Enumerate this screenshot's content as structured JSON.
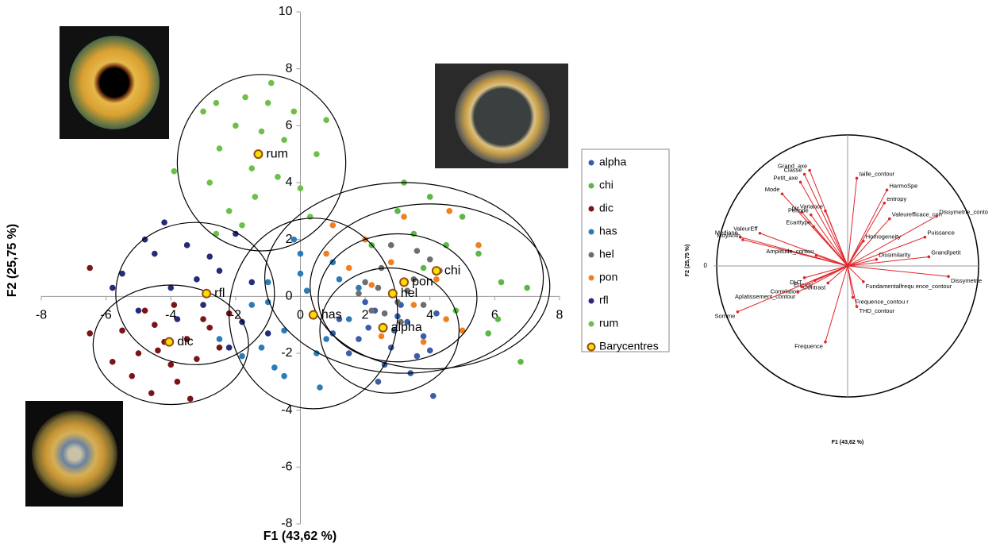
{
  "chart_data": [
    {
      "type": "scatter",
      "xlabel": "F1 (43,62 %)",
      "ylabel": "F2 (25,75 %)",
      "xlim": [
        -8,
        8
      ],
      "ylim": [
        -8,
        10
      ],
      "xticks": [
        -8,
        -6,
        -4,
        -2,
        0,
        2,
        4,
        6,
        8
      ],
      "yticks": [
        -8,
        -6,
        -4,
        -2,
        0,
        2,
        4,
        6,
        8,
        10
      ],
      "legend": "right",
      "series": [
        {
          "name": "alpha",
          "color": "#3b5ca8",
          "x": [
            1.2,
            1.8,
            2.3,
            2.8,
            3.3,
            3.8,
            4.2,
            1.5,
            2.1,
            2.6,
            3.1,
            3.6,
            2.0,
            2.9,
            3.4,
            1.0,
            4.0,
            2.4,
            3.0,
            4.1
          ],
          "y": [
            -0.8,
            -1.5,
            -0.5,
            -1.8,
            -0.9,
            -1.4,
            -0.6,
            -2.0,
            -1.1,
            -2.4,
            -0.3,
            -2.1,
            -0.2,
            -1.2,
            -2.7,
            -1.3,
            -1.9,
            -3.0,
            -0.7,
            -3.5
          ],
          "ellipse": {
            "cx": 2.75,
            "cy": -1.2,
            "rx": 2.15,
            "ry": 2.2
          }
        },
        {
          "name": "chi",
          "color": "#5cb846",
          "x": [
            3.5,
            4.5,
            5.5,
            6.2,
            3.0,
            5.0,
            4.8,
            6.8,
            2.2,
            5.8,
            4.0,
            7.0,
            3.8,
            6.1,
            3.2
          ],
          "y": [
            2.2,
            1.8,
            1.5,
            0.5,
            3.0,
            2.8,
            -0.5,
            -2.3,
            1.8,
            -1.3,
            3.5,
            0.3,
            1.0,
            -0.8,
            4.0
          ],
          "ellipse": {
            "cx": 4.0,
            "cy": 0.35,
            "rx": 3.7,
            "ry": 2.9
          }
        },
        {
          "name": "dic",
          "color": "#7b1416",
          "x": [
            -5.5,
            -5,
            -4.5,
            -4,
            -3.5,
            -3,
            -2.5,
            -5.2,
            -4.8,
            -4.2,
            -3.8,
            -3.2,
            -2.8,
            -4.6,
            -3.9,
            -5.8,
            -4.4,
            -3.4,
            -6.5,
            -2.2,
            -6.5
          ],
          "y": [
            -1.2,
            -2.0,
            -1.0,
            -2.4,
            -1.5,
            -0.8,
            -1.8,
            -2.8,
            -0.5,
            -1.6,
            -3.0,
            -2.2,
            -1.1,
            -3.4,
            -0.3,
            -2.3,
            -1.9,
            -3.6,
            -1.3,
            -0.6,
            1.0
          ],
          "ellipse": {
            "cx": -4.0,
            "cy": -1.7,
            "rx": 2.4,
            "ry": 2.1
          }
        },
        {
          "name": "has",
          "color": "#2b7bb6",
          "x": [
            -1.5,
            -1,
            -0.5,
            0,
            0.5,
            1,
            1.5,
            -0.8,
            0.2,
            0.8,
            -0.2,
            1.2,
            -1.2,
            0.6,
            -2.5,
            -0.5,
            1.8,
            0,
            -1.0,
            -1.8
          ],
          "y": [
            -0.3,
            0.5,
            -1.2,
            0.8,
            -2.0,
            1.2,
            -0.8,
            -2.5,
            0.2,
            -1.5,
            2.0,
            0.6,
            -1.8,
            -3.2,
            -1.5,
            -2.8,
            0.3,
            1.5,
            -0.2,
            -2.1
          ],
          "ellipse": {
            "cx": 0.4,
            "cy": -0.6,
            "rx": 2.6,
            "ry": 3.35
          }
        },
        {
          "name": "hel",
          "color": "#6e6e6e",
          "x": [
            2,
            2.5,
            3,
            3.5,
            4,
            2.2,
            2.8,
            3.3,
            3.8,
            4.3,
            1.8,
            3.1,
            2.6,
            3.6,
            2.4
          ],
          "y": [
            0.5,
            1.0,
            -0.2,
            0.6,
            1.3,
            -0.5,
            1.8,
            0.2,
            -0.3,
            0.9,
            0.1,
            -0.9,
            -0.6,
            1.6,
            0.3
          ],
          "ellipse": {
            "cx": 3.0,
            "cy": -0.05,
            "rx": 2.45,
            "ry": 2.25
          }
        },
        {
          "name": "pon",
          "color": "#f07f22",
          "x": [
            1.0,
            2.0,
            2.8,
            3.5,
            4.2,
            5.0,
            3.2,
            2.5,
            4.6,
            1.5,
            3.8,
            5.5,
            0.8,
            4.5,
            2.2
          ],
          "y": [
            2.5,
            2.0,
            1.2,
            -0.3,
            0.6,
            -1.2,
            2.8,
            -1.4,
            3.0,
            1.0,
            -1.6,
            1.8,
            1.5,
            -0.8,
            0.4
          ],
          "ellipse": {
            "cx": 3.2,
            "cy": 0.65,
            "rx": 4.3,
            "ry": 3.35
          }
        },
        {
          "name": "rfl",
          "color": "#252b7a",
          "x": [
            -5.5,
            -5,
            -4.5,
            -4,
            -3.5,
            -3,
            -2.5,
            -2,
            -1.5,
            -4.8,
            -3.8,
            -2.8,
            -1.8,
            -4.2,
            -3.2,
            -1.0,
            -5.8,
            -2.2
          ],
          "y": [
            0.8,
            -0.5,
            1.5,
            0.3,
            1.8,
            -0.3,
            0.9,
            2.2,
            0.5,
            2.0,
            -0.8,
            1.4,
            -0.9,
            2.6,
            0.6,
            -1.3,
            0.3,
            -1.8
          ],
          "ellipse": {
            "cx": -3.25,
            "cy": 0.1,
            "rx": 2.45,
            "ry": 2.5
          }
        },
        {
          "name": "rum",
          "color": "#6cc04a",
          "x": [
            -3,
            -2.5,
            -2,
            -1.5,
            -1,
            -0.5,
            0,
            0.5,
            0.8,
            -2.8,
            -2.2,
            -1.7,
            -1.2,
            -0.7,
            -0.2,
            0.3,
            -1.8,
            -0.9,
            -2.6,
            -1.4,
            -3.9,
            -2.6
          ],
          "y": [
            6.5,
            5.2,
            6.0,
            4.5,
            6.8,
            5.5,
            3.8,
            5.0,
            6.2,
            4.0,
            3.0,
            7.0,
            5.8,
            4.2,
            6.5,
            2.8,
            2.5,
            7.5,
            6.8,
            3.5,
            4.4,
            2.2
          ],
          "ellipse": {
            "cx": -1.2,
            "cy": 4.7,
            "rx": 2.6,
            "ry": 3.1
          }
        }
      ],
      "barycentres": {
        "name": "Barycentres",
        "fill": "#f5e100",
        "stroke": "#9c4a12",
        "labels": [
          "alpha",
          "chi",
          "dic",
          "has",
          "hel",
          "pon",
          "rfl",
          "rum"
        ],
        "x": [
          2.55,
          4.2,
          -4.05,
          0.4,
          2.85,
          3.2,
          -2.9,
          -1.3
        ],
        "y": [
          -1.1,
          0.9,
          -1.6,
          -0.65,
          0.1,
          0.5,
          0.1,
          5.0
        ]
      }
    },
    {
      "type": "correlation_circle",
      "xlabel": "F1 (43,62 %)",
      "ylabel": "F2 (25,75 %)",
      "xlim": [
        -1,
        1
      ],
      "ylim": [
        -1,
        1
      ],
      "yticks": [
        0
      ],
      "color": "#e0262a",
      "variables": [
        {
          "label": "Mode",
          "x": -0.5,
          "y": 0.55
        },
        {
          "label": "Mediane",
          "x": -0.82,
          "y": 0.22
        },
        {
          "label": "MoyArith",
          "x": -0.8,
          "y": 0.2
        },
        {
          "label": "ValeurEff",
          "x": -0.67,
          "y": 0.25
        },
        {
          "label": "Petit_axe",
          "x": -0.36,
          "y": 0.64
        },
        {
          "label": "Grand_axe",
          "x": -0.29,
          "y": 0.73
        },
        {
          "label": "Classe",
          "x": -0.33,
          "y": 0.7
        },
        {
          "label": "pic",
          "x": -0.35,
          "y": 0.41
        },
        {
          "label": "Periode",
          "x": -0.28,
          "y": 0.39
        },
        {
          "label": "Ecarttype",
          "x": -0.26,
          "y": 0.3
        },
        {
          "label": "Variance",
          "x": -0.17,
          "y": 0.42
        },
        {
          "label": "taille_contour",
          "x": 0.07,
          "y": 0.67
        },
        {
          "label": "HarmoSpe",
          "x": 0.3,
          "y": 0.58
        },
        {
          "label": "entropy",
          "x": 0.28,
          "y": 0.48
        },
        {
          "label": "Valeurefficace_con",
          "x": 0.32,
          "y": 0.36
        },
        {
          "label": "Dissymetrie_conto",
          "x": 0.68,
          "y": 0.38
        },
        {
          "label": "Homogeneity",
          "x": 0.12,
          "y": 0.19
        },
        {
          "label": "Puissance",
          "x": 0.59,
          "y": 0.22
        },
        {
          "label": "Amplitude_contou",
          "x": -0.24,
          "y": 0.08
        },
        {
          "label": "DHT",
          "x": -0.33,
          "y": -0.09
        },
        {
          "label": "Energy",
          "x": -0.25,
          "y": -0.11
        },
        {
          "label": "Contrast",
          "x": -0.15,
          "y": -0.13
        },
        {
          "label": "Correlation",
          "x": -0.35,
          "y": -0.16
        },
        {
          "label": "Aplatissement_contour",
          "x": -0.38,
          "y": -0.2
        },
        {
          "label": "Somme",
          "x": -0.84,
          "y": -0.35
        },
        {
          "label": "Frequence",
          "x": -0.17,
          "y": -0.58
        },
        {
          "label": "Fundamentalfrequ ence_contour",
          "x": 0.12,
          "y": -0.12
        },
        {
          "label": "Frequence_contou r",
          "x": 0.04,
          "y": -0.24
        },
        {
          "label": "THD_contour",
          "x": 0.07,
          "y": -0.31
        },
        {
          "label": "Dissymetrie",
          "x": 0.77,
          "y": -0.08
        },
        {
          "label": "Dissimilarity",
          "x": 0.22,
          "y": 0.05
        },
        {
          "label": "Grand/petit",
          "x": 0.62,
          "y": 0.07
        }
      ]
    }
  ]
}
